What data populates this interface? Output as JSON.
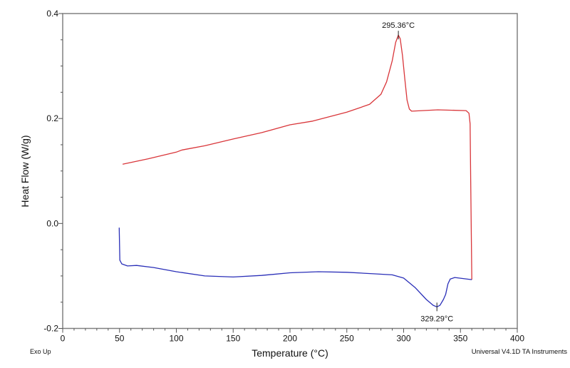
{
  "chart_data": {
    "type": "line",
    "title": "",
    "xlabel": "Temperature (°C)",
    "ylabel": "Heat Flow (W/g)",
    "xlim": [
      0,
      400
    ],
    "ylim": [
      -0.2,
      0.4
    ],
    "x_ticks": [
      "0",
      "50",
      "100",
      "150",
      "200",
      "250",
      "300",
      "350",
      "400"
    ],
    "y_ticks": [
      "-0.2",
      "0.0",
      "0.2",
      "0.4"
    ],
    "x_tick_values": [
      0,
      50,
      100,
      150,
      200,
      250,
      300,
      350,
      400
    ],
    "y_tick_values": [
      -0.2,
      0.0,
      0.2,
      0.4
    ],
    "grid": false,
    "series": [
      {
        "color": "#d9363a",
        "points": [
          [
            52.7,
            0.113
          ],
          [
            75,
            0.123
          ],
          [
            100,
            0.136
          ],
          [
            105,
            0.14
          ],
          [
            110,
            0.142
          ],
          [
            125,
            0.148
          ],
          [
            150,
            0.161
          ],
          [
            175,
            0.173
          ],
          [
            200,
            0.188
          ],
          [
            220,
            0.195
          ],
          [
            250,
            0.212
          ],
          [
            270,
            0.227
          ],
          [
            280,
            0.246
          ],
          [
            285,
            0.27
          ],
          [
            290,
            0.31
          ],
          [
            293,
            0.345
          ],
          [
            295.36,
            0.359
          ],
          [
            297,
            0.352
          ],
          [
            299,
            0.32
          ],
          [
            301,
            0.276
          ],
          [
            303,
            0.235
          ],
          [
            305,
            0.218
          ],
          [
            307,
            0.214
          ],
          [
            330,
            0.2165
          ],
          [
            355,
            0.215
          ],
          [
            357.5,
            0.21
          ],
          [
            358.5,
            0.19
          ],
          [
            359,
            0.086
          ],
          [
            360,
            -0.107
          ]
        ]
      },
      {
        "color": "#2a2fb8",
        "points": [
          [
            49.7,
            -0.008
          ],
          [
            50.3,
            -0.07
          ],
          [
            52,
            -0.077
          ],
          [
            57,
            -0.081
          ],
          [
            65,
            -0.08
          ],
          [
            80,
            -0.084
          ],
          [
            100,
            -0.092
          ],
          [
            125,
            -0.1
          ],
          [
            150,
            -0.102
          ],
          [
            175,
            -0.099
          ],
          [
            200,
            -0.094
          ],
          [
            225,
            -0.092
          ],
          [
            250,
            -0.093
          ],
          [
            275,
            -0.096
          ],
          [
            290,
            -0.098
          ],
          [
            300,
            -0.104
          ],
          [
            310,
            -0.122
          ],
          [
            320,
            -0.145
          ],
          [
            326,
            -0.156
          ],
          [
            329.29,
            -0.159
          ],
          [
            332,
            -0.156
          ],
          [
            335,
            -0.145
          ],
          [
            337,
            -0.135
          ],
          [
            339,
            -0.115
          ],
          [
            341,
            -0.106
          ],
          [
            345,
            -0.103
          ],
          [
            360,
            -0.107
          ]
        ]
      }
    ],
    "annotations": [
      {
        "text": "295.36°C",
        "x": 295.36,
        "y": 0.359,
        "position": "above"
      },
      {
        "text": "329.29°C",
        "x": 329.29,
        "y": -0.159,
        "position": "below"
      }
    ]
  },
  "footer": {
    "left": "Exo Up",
    "right": "Universal V4.1D TA Instruments"
  }
}
